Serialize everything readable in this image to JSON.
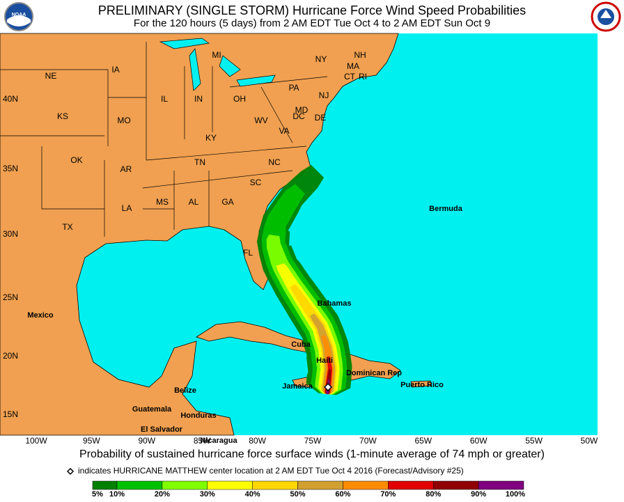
{
  "header": {
    "title": "PRELIMINARY (SINGLE STORM) Hurricane Force Wind Speed Probabilities",
    "subtitle": "For the 120 hours (5 days) from 2 AM EDT Tue Oct 4 to 2 AM EDT Sun Oct 9",
    "left_logo": "NOAA"
  },
  "latitude_labels": [
    "40N",
    "35N",
    "30N",
    "25N",
    "20N",
    "15N"
  ],
  "longitude_labels": [
    "100W",
    "95W",
    "90W",
    "85W",
    "80W",
    "75W",
    "70W",
    "65W",
    "60W",
    "55W",
    "50W"
  ],
  "places": [
    "MI",
    "NY",
    "NH",
    "MA",
    "CT",
    "RI",
    "NE",
    "IA",
    "PA",
    "NJ",
    "IL",
    "IN",
    "OH",
    "MD",
    "DC",
    "DE",
    "KS",
    "MO",
    "WV",
    "VA",
    "KY",
    "OK",
    "AR",
    "TN",
    "NC",
    "SC",
    "MS",
    "AL",
    "GA",
    "LA",
    "TX",
    "FL",
    "Bermuda",
    "Bahamas",
    "Mexico",
    "Cuba",
    "Haiti",
    "Dominican Rep",
    "Jamaica",
    "Puerto Rico",
    "Belize",
    "Guatemala",
    "Honduras",
    "El Salvador",
    "Nicaragua"
  ],
  "caption": "Probability of sustained hurricane force surface winds (1-minute average of 74 mph or greater)",
  "note": "indicates HURRICANE MATTHEW center location at 2 AM EDT Tue Oct 4 2016 (Forecast/Advisory #25)",
  "legend": {
    "labels": [
      "5%",
      "10%",
      "20%",
      "30%",
      "40%",
      "50%",
      "60%",
      "70%",
      "80%",
      "90%",
      "100%"
    ],
    "colors": [
      "#008000",
      "#00c000",
      "#80ff00",
      "#ffff00",
      "#ffd700",
      "#d2a030",
      "#ff8c00",
      "#e00000",
      "#900000",
      "#800080"
    ]
  }
}
